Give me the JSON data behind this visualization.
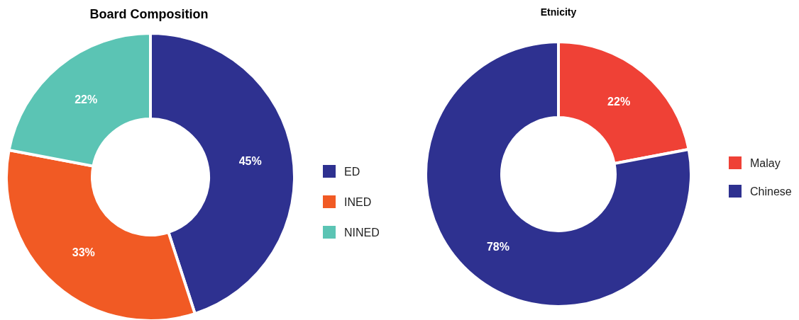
{
  "chart_data": [
    {
      "type": "donut",
      "title": "Board Composition",
      "categories": [
        "ED",
        "INED",
        "NINED"
      ],
      "values": [
        45,
        33,
        22
      ],
      "colors": [
        "#2e3190",
        "#f15a24",
        "#5bc4b4"
      ],
      "value_labels": [
        "45%",
        "33%",
        "22%"
      ],
      "legend": "right"
    },
    {
      "type": "donut",
      "title": "Etnicity",
      "categories": [
        "Malay",
        "Chinese"
      ],
      "values": [
        22,
        78
      ],
      "colors": [
        "#ef4136",
        "#2e3190"
      ],
      "value_labels": [
        "22%",
        "78%"
      ],
      "legend": "right"
    }
  ]
}
